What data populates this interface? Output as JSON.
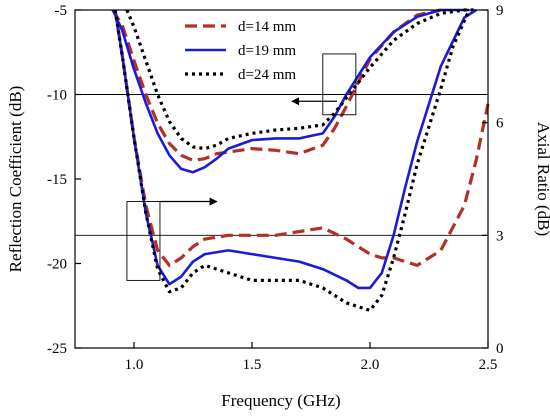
{
  "chart_data": {
    "type": "line",
    "xlabel": "Frequency (GHz)",
    "ylabel_left": "Reflection Coefficient (dB)",
    "ylabel_right": "Axial Ratio (dB)",
    "xlim": [
      0.75,
      2.5
    ],
    "ylim_left": [
      -25,
      -5
    ],
    "ylim_right": [
      0,
      9
    ],
    "x_ticks": [
      1.0,
      1.5,
      2.0,
      2.5
    ],
    "x_tick_labels": [
      "1.0",
      "1.5",
      "2.0",
      "2.5"
    ],
    "y_ticks_left": [
      -25,
      -20,
      -15,
      -10,
      -5
    ],
    "y_tick_labels_left": [
      "-25",
      "-20",
      "-15",
      "-10",
      "-5"
    ],
    "y_ticks_right": [
      0,
      3,
      6,
      9
    ],
    "y_tick_labels_right": [
      "0",
      "3",
      "6",
      "9"
    ],
    "reference_lines": {
      "left_axis_y": -10,
      "right_axis_y": 3
    },
    "legend": {
      "placement": "top-center",
      "entries": [
        "d=14 mm",
        "d=19 mm",
        "d=24 mm"
      ]
    },
    "colors": {
      "d14": "#b52f26",
      "d19": "#1a1adc",
      "d24": "#000000",
      "axes": "#000000"
    },
    "series": [
      {
        "name": "d=14 mm",
        "axis": "left",
        "quantity": "reflection",
        "style": "dashed",
        "points": [
          [
            0.91,
            -5.0
          ],
          [
            0.95,
            -5.9
          ],
          [
            1.0,
            -8.0
          ],
          [
            1.05,
            -10.0
          ],
          [
            1.1,
            -11.7
          ],
          [
            1.15,
            -12.9
          ],
          [
            1.2,
            -13.6
          ],
          [
            1.25,
            -13.9
          ],
          [
            1.3,
            -13.8
          ],
          [
            1.35,
            -13.5
          ],
          [
            1.4,
            -13.4
          ],
          [
            1.5,
            -13.2
          ],
          [
            1.6,
            -13.3
          ],
          [
            1.7,
            -13.5
          ],
          [
            1.8,
            -13.0
          ],
          [
            1.85,
            -12.0
          ],
          [
            1.9,
            -10.7
          ],
          [
            1.95,
            -9.3
          ],
          [
            2.0,
            -7.9
          ],
          [
            2.1,
            -6.3
          ],
          [
            2.2,
            -5.3
          ],
          [
            2.3,
            -5.0
          ]
        ]
      },
      {
        "name": "d=19 mm",
        "axis": "left",
        "quantity": "reflection",
        "style": "solid",
        "points": [
          [
            0.91,
            -5.0
          ],
          [
            0.95,
            -6.2
          ],
          [
            1.0,
            -8.5
          ],
          [
            1.05,
            -10.5
          ],
          [
            1.1,
            -12.3
          ],
          [
            1.15,
            -13.6
          ],
          [
            1.2,
            -14.4
          ],
          [
            1.25,
            -14.6
          ],
          [
            1.3,
            -14.3
          ],
          [
            1.35,
            -13.8
          ],
          [
            1.4,
            -13.2
          ],
          [
            1.5,
            -12.7
          ],
          [
            1.6,
            -12.6
          ],
          [
            1.7,
            -12.6
          ],
          [
            1.8,
            -12.3
          ],
          [
            1.85,
            -11.3
          ],
          [
            1.9,
            -10.0
          ],
          [
            1.95,
            -8.9
          ],
          [
            2.0,
            -7.8
          ],
          [
            2.1,
            -6.3
          ],
          [
            2.2,
            -5.4
          ],
          [
            2.3,
            -5.0
          ],
          [
            2.42,
            -5.0
          ]
        ]
      },
      {
        "name": "d=24 mm",
        "axis": "left",
        "quantity": "reflection",
        "style": "dotted",
        "points": [
          [
            0.97,
            -5.0
          ],
          [
            1.0,
            -6.0
          ],
          [
            1.05,
            -8.0
          ],
          [
            1.1,
            -10.0
          ],
          [
            1.15,
            -11.6
          ],
          [
            1.2,
            -12.6
          ],
          [
            1.25,
            -13.1
          ],
          [
            1.3,
            -13.2
          ],
          [
            1.35,
            -13.0
          ],
          [
            1.4,
            -12.6
          ],
          [
            1.5,
            -12.3
          ],
          [
            1.6,
            -12.1
          ],
          [
            1.7,
            -12.0
          ],
          [
            1.8,
            -11.8
          ],
          [
            1.85,
            -11.1
          ],
          [
            1.9,
            -10.2
          ],
          [
            1.95,
            -9.3
          ],
          [
            2.0,
            -8.4
          ],
          [
            2.1,
            -6.8
          ],
          [
            2.2,
            -5.8
          ],
          [
            2.3,
            -5.2
          ],
          [
            2.4,
            -5.0
          ],
          [
            2.45,
            -5.0
          ]
        ]
      },
      {
        "name": "d=14 mm",
        "axis": "right",
        "quantity": "axial_ratio",
        "style": "dashed",
        "points": [
          [
            0.92,
            9.0
          ],
          [
            0.95,
            7.8
          ],
          [
            1.0,
            5.6
          ],
          [
            1.05,
            3.8
          ],
          [
            1.1,
            2.6
          ],
          [
            1.15,
            2.2
          ],
          [
            1.2,
            2.4
          ],
          [
            1.25,
            2.7
          ],
          [
            1.3,
            2.9
          ],
          [
            1.4,
            3.0
          ],
          [
            1.5,
            3.0
          ],
          [
            1.6,
            3.0
          ],
          [
            1.7,
            3.1
          ],
          [
            1.8,
            3.2
          ],
          [
            1.9,
            2.9
          ],
          [
            2.0,
            2.5
          ],
          [
            2.05,
            2.4
          ],
          [
            2.1,
            2.4
          ],
          [
            2.2,
            2.2
          ],
          [
            2.3,
            2.6
          ],
          [
            2.4,
            3.8
          ],
          [
            2.45,
            5.0
          ],
          [
            2.5,
            6.5
          ]
        ]
      },
      {
        "name": "d=19 mm",
        "axis": "right",
        "quantity": "axial_ratio",
        "style": "solid",
        "points": [
          [
            0.92,
            9.0
          ],
          [
            0.95,
            7.8
          ],
          [
            1.0,
            5.6
          ],
          [
            1.05,
            3.6
          ],
          [
            1.1,
            2.2
          ],
          [
            1.15,
            1.7
          ],
          [
            1.2,
            1.9
          ],
          [
            1.25,
            2.3
          ],
          [
            1.3,
            2.5
          ],
          [
            1.4,
            2.6
          ],
          [
            1.5,
            2.5
          ],
          [
            1.6,
            2.4
          ],
          [
            1.7,
            2.3
          ],
          [
            1.8,
            2.1
          ],
          [
            1.9,
            1.8
          ],
          [
            1.95,
            1.6
          ],
          [
            2.0,
            1.6
          ],
          [
            2.05,
            2.0
          ],
          [
            2.1,
            3.0
          ],
          [
            2.15,
            4.3
          ],
          [
            2.2,
            5.5
          ],
          [
            2.3,
            7.5
          ],
          [
            2.4,
            8.8
          ],
          [
            2.45,
            9.0
          ]
        ]
      },
      {
        "name": "d=24 mm",
        "axis": "right",
        "quantity": "axial_ratio",
        "style": "dotted",
        "points": [
          [
            0.92,
            9.0
          ],
          [
            0.95,
            7.8
          ],
          [
            1.0,
            5.6
          ],
          [
            1.05,
            3.6
          ],
          [
            1.1,
            2.1
          ],
          [
            1.15,
            1.5
          ],
          [
            1.2,
            1.6
          ],
          [
            1.25,
            2.0
          ],
          [
            1.3,
            2.2
          ],
          [
            1.4,
            2.0
          ],
          [
            1.5,
            1.8
          ],
          [
            1.6,
            1.8
          ],
          [
            1.7,
            1.8
          ],
          [
            1.8,
            1.6
          ],
          [
            1.9,
            1.2
          ],
          [
            2.0,
            1.0
          ],
          [
            2.05,
            1.4
          ],
          [
            2.1,
            2.4
          ],
          [
            2.15,
            3.6
          ],
          [
            2.2,
            4.9
          ],
          [
            2.3,
            6.9
          ],
          [
            2.35,
            8.0
          ],
          [
            2.42,
            9.0
          ]
        ]
      }
    ],
    "annotations": [
      {
        "type": "box",
        "target": "reflection",
        "x_range": [
          1.8,
          1.94
        ],
        "y_range_left": [
          -11.2,
          -7.6
        ]
      },
      {
        "type": "arrow",
        "direction": "left",
        "points_to_axis": "left",
        "x_from": 1.86,
        "x_to": 1.67,
        "y_left": -10.4
      },
      {
        "type": "box",
        "target": "axial_ratio",
        "x_range": [
          0.97,
          1.11
        ],
        "y_range_right": [
          1.8,
          3.9
        ]
      },
      {
        "type": "arrow",
        "direction": "right",
        "points_to_axis": "right",
        "x_from": 1.11,
        "x_to": 1.35,
        "y_right": 3.9
      }
    ]
  }
}
